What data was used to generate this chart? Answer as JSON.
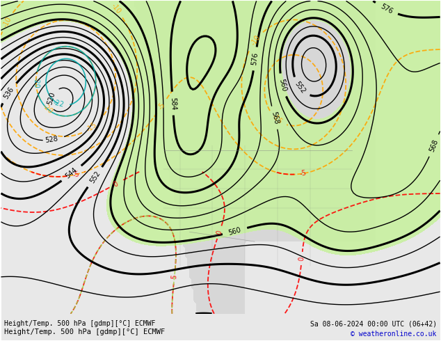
{
  "title_left": "Height/Temp. 500 hPa [gdmp][°C] ECMWF",
  "title_right": "Sa 08-06-2024 00:00 UTC (06+42)",
  "copyright": "© weatheronline.co.uk",
  "bg_color": "#e8e8e8",
  "land_color": "#d0d0d0",
  "green_fill_color": "#c8f0a0",
  "fig_width": 6.34,
  "fig_height": 4.9,
  "dpi": 100
}
